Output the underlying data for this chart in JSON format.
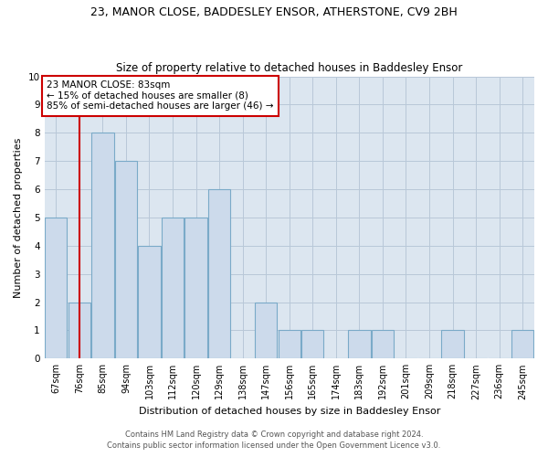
{
  "title1": "23, MANOR CLOSE, BADDESLEY ENSOR, ATHERSTONE, CV9 2BH",
  "title2": "Size of property relative to detached houses in Baddesley Ensor",
  "xlabel": "Distribution of detached houses by size in Baddesley Ensor",
  "ylabel": "Number of detached properties",
  "categories": [
    "67sqm",
    "76sqm",
    "85sqm",
    "94sqm",
    "103sqm",
    "112sqm",
    "120sqm",
    "129sqm",
    "138sqm",
    "147sqm",
    "156sqm",
    "165sqm",
    "174sqm",
    "183sqm",
    "192sqm",
    "201sqm",
    "209sqm",
    "218sqm",
    "227sqm",
    "236sqm",
    "245sqm"
  ],
  "values": [
    5,
    2,
    8,
    7,
    4,
    5,
    5,
    6,
    0,
    2,
    1,
    1,
    0,
    1,
    1,
    0,
    0,
    1,
    0,
    0,
    1
  ],
  "bar_color": "#ccdaeb",
  "bar_edge_color": "#7aaac8",
  "vline_x": 1,
  "vline_color": "#cc0000",
  "ylim": [
    0,
    10
  ],
  "yticks": [
    0,
    1,
    2,
    3,
    4,
    5,
    6,
    7,
    8,
    9,
    10
  ],
  "annotation_text": "23 MANOR CLOSE: 83sqm\n← 15% of detached houses are smaller (8)\n85% of semi-detached houses are larger (46) →",
  "annotation_box_color": "#ffffff",
  "annotation_box_edge": "#cc0000",
  "footer1": "Contains HM Land Registry data © Crown copyright and database right 2024.",
  "footer2": "Contains public sector information licensed under the Open Government Licence v3.0.",
  "bg_color": "#ffffff",
  "plot_bg_color": "#dce6f0",
  "grid_color": "#b8c8d8",
  "title_fontsize": 9,
  "subtitle_fontsize": 8.5,
  "axis_label_fontsize": 8,
  "tick_fontsize": 7,
  "footer_fontsize": 6
}
